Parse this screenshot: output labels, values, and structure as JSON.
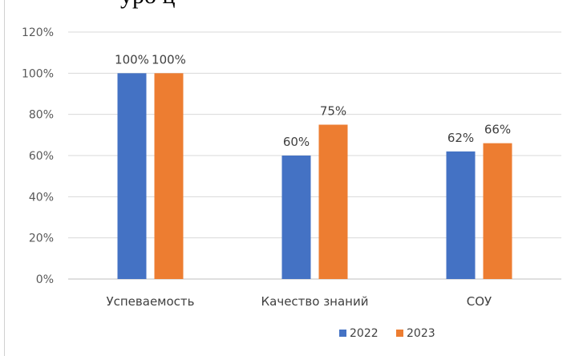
{
  "header_fragment": "уро ц",
  "chart_data": {
    "type": "bar",
    "categories": [
      "Успеваемость",
      "Качество знаний",
      "СОУ"
    ],
    "series": [
      {
        "name": "2022",
        "values": [
          100,
          60,
          62
        ],
        "labels": [
          "100%",
          "60%",
          "62%"
        ],
        "color": "#4472C4"
      },
      {
        "name": "2023",
        "values": [
          100,
          75,
          66
        ],
        "labels": [
          "100%",
          "75%",
          "66%"
        ],
        "color": "#ED7D31"
      }
    ],
    "y_ticks": [
      0,
      20,
      40,
      60,
      80,
      100,
      120
    ],
    "y_tick_labels": [
      "0%",
      "20%",
      "40%",
      "60%",
      "80%",
      "100%",
      "120%"
    ],
    "ylim": [
      0,
      120
    ],
    "grid": true,
    "legend": "bottom-center",
    "title": "",
    "xlabel": "",
    "ylabel": ""
  }
}
